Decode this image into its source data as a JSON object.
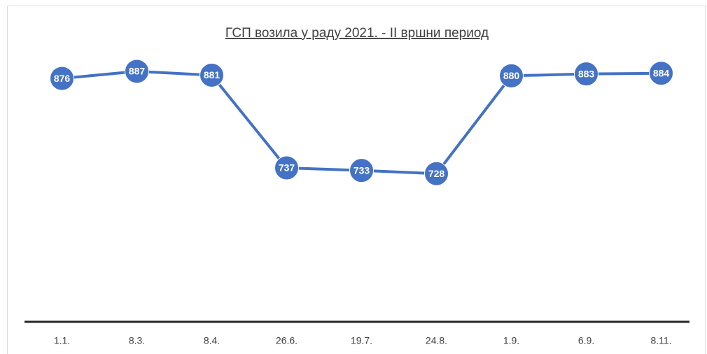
{
  "chart_data": {
    "type": "line",
    "title": "ГСП возила у раду 2021. - II вршни период",
    "categories": [
      "1.1.",
      "8.3.",
      "8.4.",
      "26.6.",
      "19.7.",
      "24.8.",
      "1.9.",
      "6.9.",
      "8.11."
    ],
    "values": [
      876,
      887,
      881,
      737,
      733,
      728,
      880,
      883,
      884
    ],
    "color": "#4472c4",
    "ylim": [
      500,
      900
    ]
  }
}
